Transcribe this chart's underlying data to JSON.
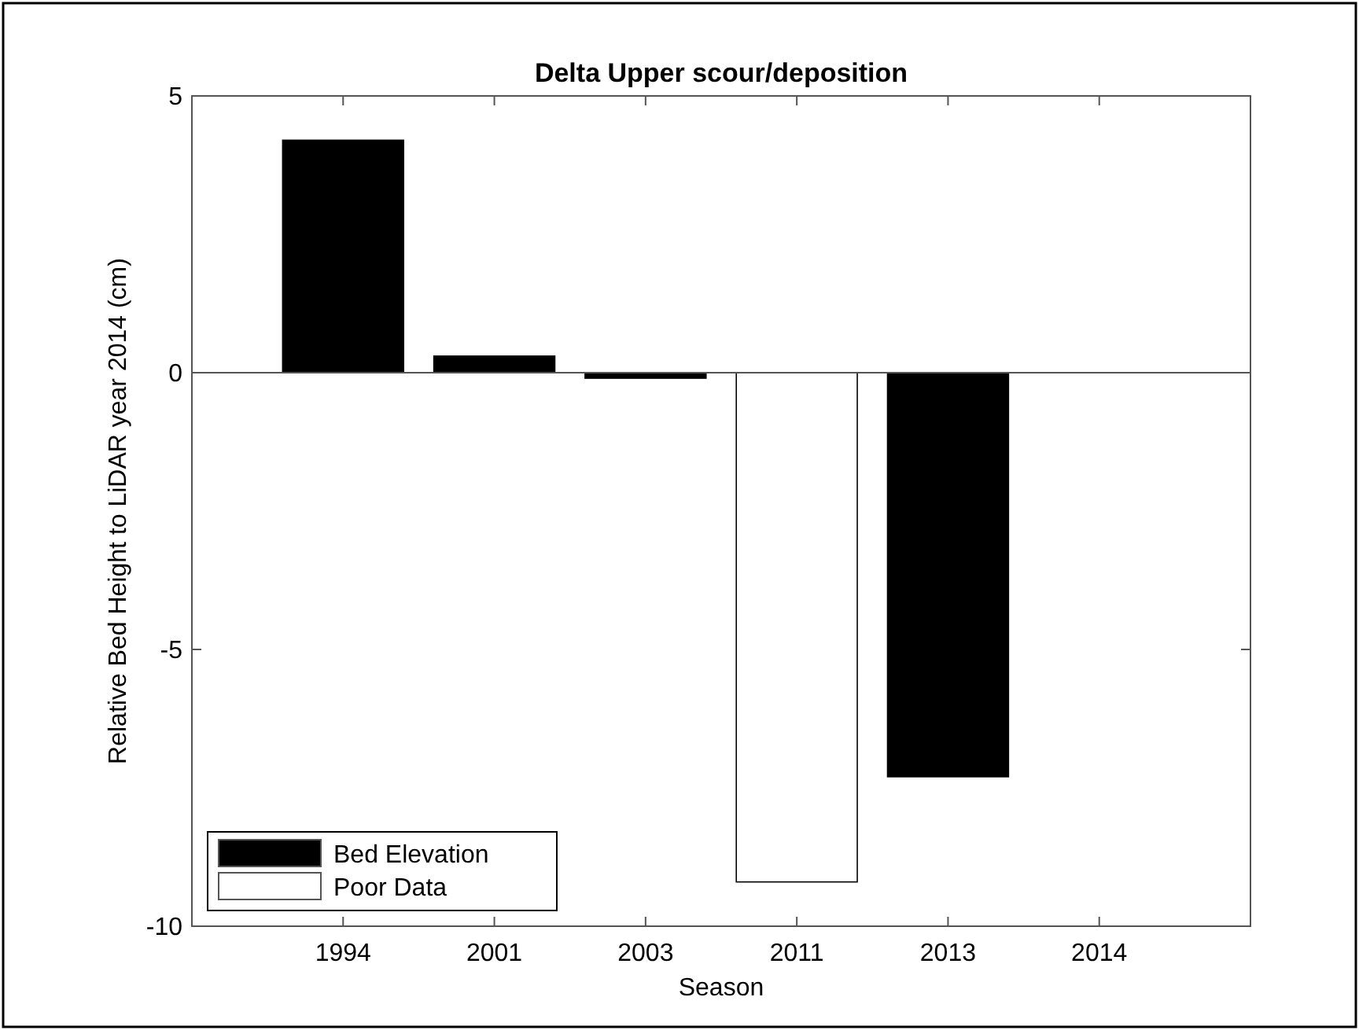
{
  "chart_data": {
    "type": "bar",
    "title": "Delta Upper scour/deposition",
    "xlabel": "Season",
    "ylabel": "Relative Bed Height to LiDAR year 2014 (cm)",
    "categories": [
      "1994",
      "2001",
      "2003",
      "2011",
      "2013",
      "2014"
    ],
    "series": [
      {
        "name": "Bed Elevation",
        "color": "#000000",
        "values": [
          4.2,
          0.3,
          -0.1,
          null,
          -7.3,
          0
        ]
      },
      {
        "name": "Poor Data",
        "color": "#ffffff",
        "values": [
          null,
          null,
          null,
          -9.2,
          null,
          null
        ]
      }
    ],
    "ylim": [
      -10,
      5
    ],
    "yticks": [
      -10,
      -5,
      0,
      5
    ],
    "ref_lines": [
      {
        "axis": "y",
        "value": 0,
        "color": "#555555"
      }
    ],
    "legend": "bottom left"
  }
}
